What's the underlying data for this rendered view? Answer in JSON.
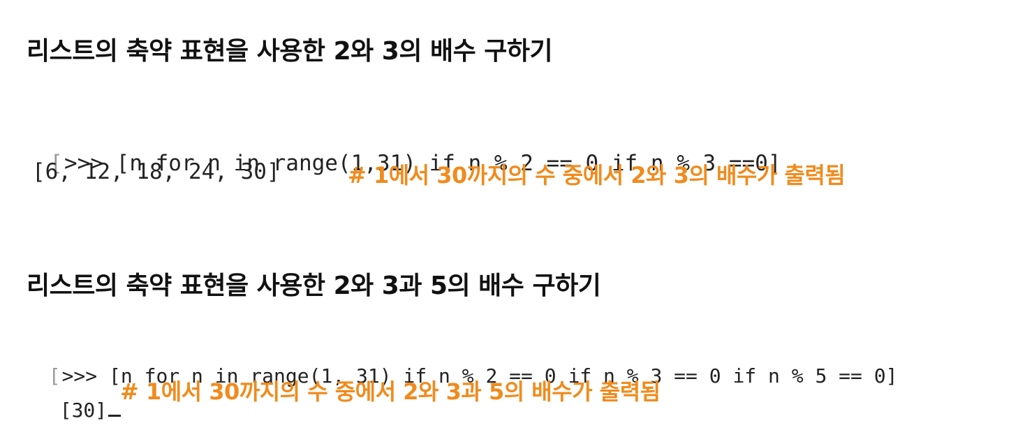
{
  "section1": {
    "heading": "리스트의 축약 표현을 사용한 2와 3의 배수 구하기",
    "prompt_mark": "[",
    "code": ">>> [n for n in range(1,31) if n % 2 == 0 if n % 3 ==0]",
    "output": "[6, 12, 18, 24, 30]",
    "comment": "# 1에서 30까지의 수 중에서 2와 3의 배수가 출력됨"
  },
  "section2": {
    "heading": "리스트의 축약 표현을 사용한 2와 3과 5의 배수 구하기",
    "prompt_mark": "[",
    "code": ">>> [n for n in range(1, 31) if n % 2 == 0 if n % 3 == 0 if n % 5 == 0]",
    "output": "[30]",
    "comment": "# 1에서 30까지의 수 중에서 2와 3과 5의 배수가 출력됨"
  },
  "colors": {
    "comment": "#f08b1d",
    "text": "#111111"
  }
}
